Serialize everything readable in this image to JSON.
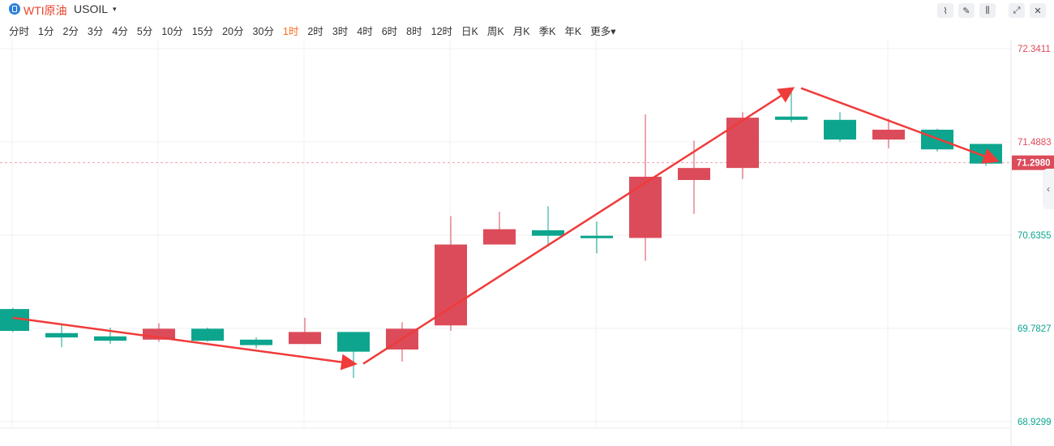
{
  "header": {
    "symbol_name": "WTI原油",
    "symbol_code": "USOIL",
    "caret": "▾"
  },
  "toolbar": {
    "icons": [
      "line-chart-icon",
      "draw-pencil-icon",
      "candlestick-icon",
      "fullscreen-icon",
      "close-icon"
    ]
  },
  "periods": [
    "分时",
    "1分",
    "2分",
    "3分",
    "4分",
    "5分",
    "10分",
    "15分",
    "20分",
    "30分",
    "1时",
    "2时",
    "3时",
    "4时",
    "6时",
    "8时",
    "12时",
    "日K",
    "周K",
    "月K",
    "季K",
    "年K",
    "更多▾"
  ],
  "active_period": "1时",
  "colors": {
    "up": "#dc4b5a",
    "down": "#0da58e",
    "arrow": "#ef3b3a",
    "grid": "#f0f1f3",
    "current_line": "#f3a0aa"
  },
  "chart_data": {
    "type": "candlestick",
    "y_ticks": [
      "72.3411",
      "71.4883",
      "70.6355",
      "69.7827",
      "68.9299"
    ],
    "y_tick_values": [
      72.3411,
      71.4883,
      70.6355,
      69.7827,
      68.9299
    ],
    "ylim": [
      68.9299,
      72.3411
    ],
    "current_price": "71.2980",
    "current_value": 71.298,
    "candles": [
      {
        "open": 69.96,
        "close": 69.76,
        "high": 69.97,
        "low": 69.75
      },
      {
        "open": 69.74,
        "close": 69.7,
        "high": 69.82,
        "low": 69.61
      },
      {
        "open": 69.71,
        "close": 69.67,
        "high": 69.79,
        "low": 69.64
      },
      {
        "open": 69.68,
        "close": 69.78,
        "high": 69.83,
        "low": 69.66
      },
      {
        "open": 69.78,
        "close": 69.67,
        "high": 69.79,
        "low": 69.66
      },
      {
        "open": 69.68,
        "close": 69.63,
        "high": 69.7,
        "low": 69.6
      },
      {
        "open": 69.64,
        "close": 69.75,
        "high": 69.88,
        "low": 69.64
      },
      {
        "open": 69.75,
        "close": 69.57,
        "high": 69.75,
        "low": 69.33
      },
      {
        "open": 69.59,
        "close": 69.78,
        "high": 69.84,
        "low": 69.48
      },
      {
        "open": 69.81,
        "close": 70.55,
        "high": 70.81,
        "low": 69.76
      },
      {
        "open": 70.55,
        "close": 70.69,
        "high": 70.85,
        "low": 70.55
      },
      {
        "open": 70.68,
        "close": 70.63,
        "high": 70.9,
        "low": 70.53
      },
      {
        "open": 70.63,
        "close": 70.62,
        "high": 70.76,
        "low": 70.47
      },
      {
        "open": 70.61,
        "close": 71.17,
        "high": 71.74,
        "low": 70.4
      },
      {
        "open": 71.14,
        "close": 71.25,
        "high": 71.5,
        "low": 70.83
      },
      {
        "open": 71.25,
        "close": 71.71,
        "high": 71.76,
        "low": 71.15
      },
      {
        "open": 71.72,
        "close": 71.69,
        "high": 71.96,
        "low": 71.67
      },
      {
        "open": 71.69,
        "close": 71.51,
        "high": 71.76,
        "low": 71.49
      },
      {
        "open": 71.51,
        "close": 71.6,
        "high": 71.7,
        "low": 71.43
      },
      {
        "open": 71.6,
        "close": 71.42,
        "high": 71.61,
        "low": 71.4
      },
      {
        "open": 71.47,
        "close": 71.29,
        "high": 71.47,
        "low": 71.27
      }
    ],
    "arrows": [
      {
        "from": [
          0,
          69.88
        ],
        "to": [
          7,
          69.46
        ]
      },
      {
        "from": [
          7.2,
          69.46
        ],
        "to": [
          16,
          71.97
        ]
      },
      {
        "from": [
          16.2,
          71.98
        ],
        "to": [
          20.2,
          71.32
        ]
      }
    ]
  }
}
